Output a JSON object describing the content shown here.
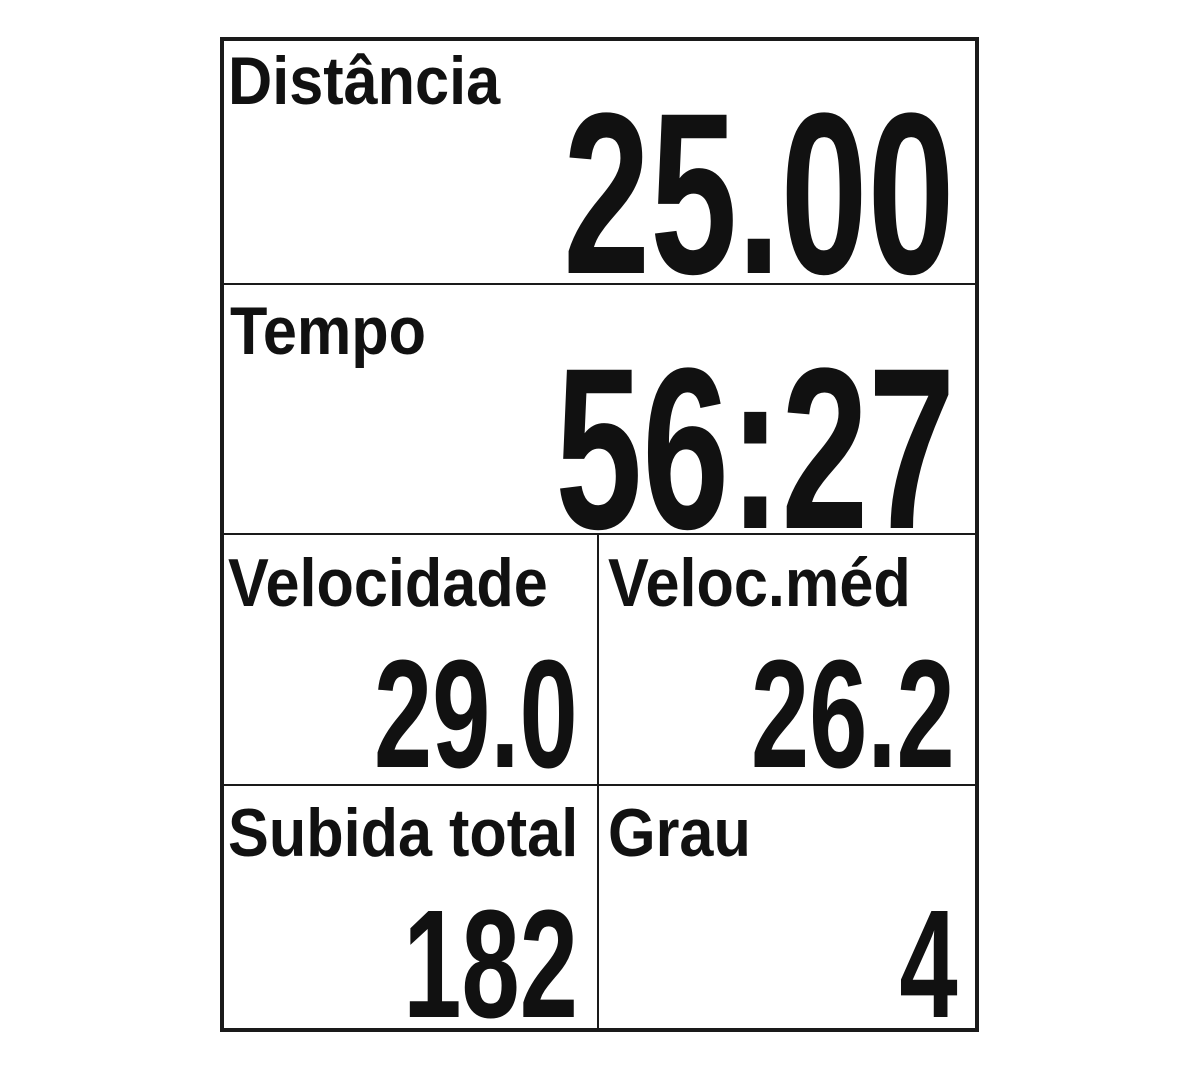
{
  "fields": [
    {
      "label": "Distância",
      "value": "25.00"
    },
    {
      "label": "Tempo",
      "value": "56:27"
    },
    {
      "label": "Velocidade",
      "value": "29.0"
    },
    {
      "label": "Veloc.méd",
      "value": "26.2"
    },
    {
      "label": "Subida total",
      "value": "182"
    },
    {
      "label": "Grau",
      "value": "4"
    }
  ]
}
